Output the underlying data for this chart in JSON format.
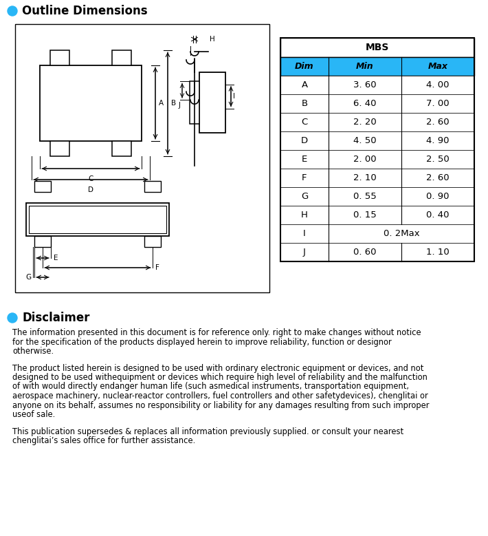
{
  "title": "Outline Dimensions",
  "disclaimer_title": "Disclaimer",
  "bullet_color": "#29B6F6",
  "table_header": "MBS",
  "col_headers": [
    "Dim",
    "Min",
    "Max"
  ],
  "col_header_bg": "#29B6F6",
  "rows": [
    [
      "A",
      "3. 60",
      "4. 00"
    ],
    [
      "B",
      "6. 40",
      "7. 00"
    ],
    [
      "C",
      "2. 20",
      "2. 60"
    ],
    [
      "D",
      "4. 50",
      "4. 90"
    ],
    [
      "E",
      "2. 00",
      "2. 50"
    ],
    [
      "F",
      "2. 10",
      "2. 60"
    ],
    [
      "G",
      "0. 55",
      "0. 90"
    ],
    [
      "H",
      "0. 15",
      "0. 40"
    ],
    [
      "I",
      "0. 2Max",
      ""
    ],
    [
      "J",
      "0. 60",
      "1. 10"
    ]
  ],
  "p1_lines": [
    "The information presented in this document is for reference only. right to make changes without notice",
    "for the specification of the products displayed herein to improve reliability, function or designor",
    "otherwise."
  ],
  "p2_lines": [
    "The product listed herein is designed to be used with ordinary electronic equipment or devices, and not",
    "designed to be used withequipment or devices which require high level of reliability and the malfunction",
    "of with would directly endanger human life (such asmedical instruments, transportation equipment,",
    "aerospace machinery, nuclear-reactor controllers, fuel controllers and other safetydevices), chenglitai or",
    "anyone on its behalf, assumes no responsibility or liability for any damages resulting from such improper",
    "useof sale."
  ],
  "p3_lines": [
    "This publication supersedes & replaces all information previously supplied. or consult your nearest",
    "chenglitai’s sales office for further assistance."
  ],
  "bg_color": "#FFFFFF"
}
